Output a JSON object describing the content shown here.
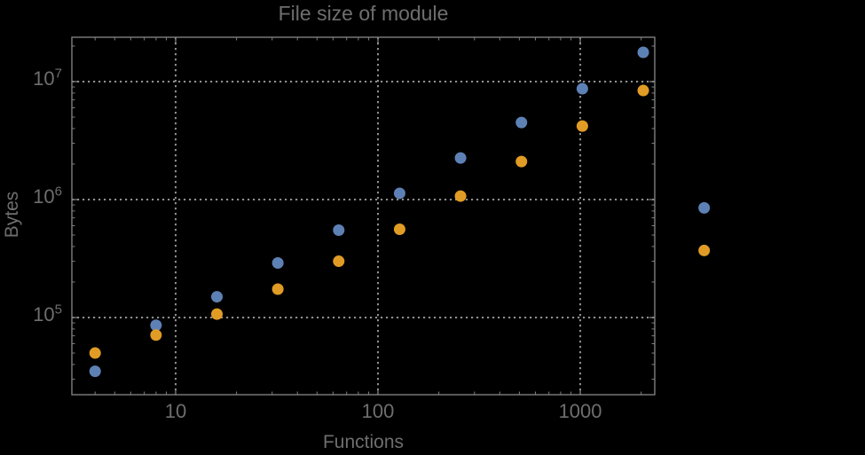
{
  "colors": {
    "background": "#000000",
    "frame": "#7f7f7f",
    "gridlines": "#8f8f8f",
    "text": "#6e6e6e",
    "series_blue": "#5e81b5",
    "series_orange": "#e09c24"
  },
  "chart_data": {
    "type": "scatter",
    "title": "File size of module",
    "xlabel": "Functions",
    "ylabel": "Bytes",
    "x_scale": "log",
    "y_scale": "log",
    "grid": "dotted-major-gridlines",
    "legend_position": "none",
    "x": [
      4,
      8,
      16,
      32,
      64,
      128,
      256,
      512,
      1024,
      2048,
      4096
    ],
    "series": [
      {
        "name": "blue-series",
        "color": "#5e81b5",
        "values": [
          35000,
          86000,
          150000,
          290000,
          550000,
          1130000,
          2250000,
          4500000,
          8700000,
          17700000,
          850000
        ]
      },
      {
        "name": "orange-series",
        "color": "#e09c24",
        "values": [
          50000,
          71000,
          107000,
          174000,
          300000,
          560000,
          1070000,
          2100000,
          4200000,
          8400000,
          370000
        ]
      }
    ],
    "x_ticks": {
      "values": [
        10,
        100,
        1000
      ],
      "labels": [
        "10",
        "100",
        "1000"
      ]
    },
    "y_ticks": {
      "base": "10",
      "exponents": [
        5,
        6,
        7
      ],
      "values": [
        100000,
        1000000,
        10000000
      ]
    },
    "xlim": [
      3.07,
      2334
    ],
    "ylim": [
      22180,
      23760000
    ],
    "marker_diameter_px": 13
  }
}
